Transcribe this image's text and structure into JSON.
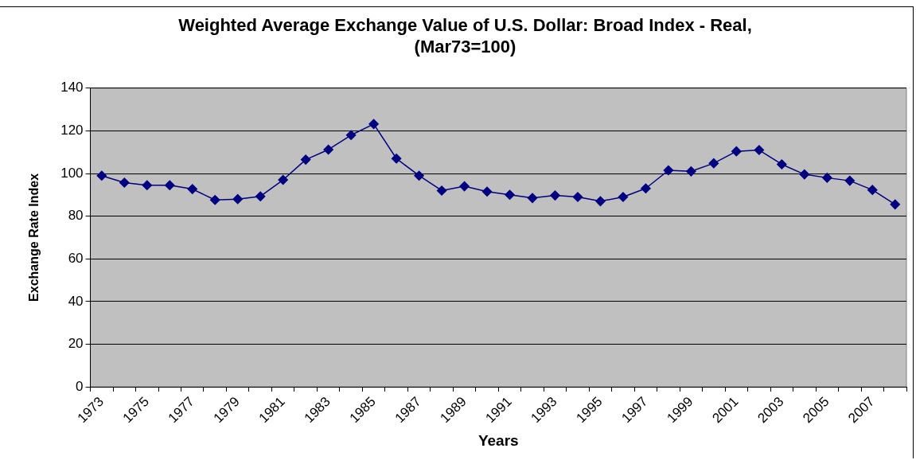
{
  "chart_data": {
    "type": "line",
    "title": "Weighted Average Exchange Value of U.S. Dollar: Broad Index - Real, (Mar73=100)",
    "xlabel": "Years",
    "ylabel": "Exchange Rate Index",
    "categories": [
      "1973",
      null,
      "1975",
      null,
      "1977",
      null,
      "1979",
      null,
      "1981",
      null,
      "1983",
      null,
      "1985",
      null,
      "1987",
      null,
      "1989",
      null,
      "1991",
      null,
      "1993",
      null,
      "1995",
      null,
      "1997",
      null,
      "1999",
      null,
      "2001",
      null,
      "2003",
      null,
      "2005",
      null,
      "2007",
      null
    ],
    "series": [
      {
        "color": "#000080",
        "values": [
          99,
          95.7,
          94.5,
          94.5,
          92.7,
          87.6,
          88,
          89.3,
          97,
          106.5,
          111.2,
          118,
          123.2,
          107,
          99,
          92,
          94,
          91.5,
          90,
          88.5,
          89.7,
          89,
          87,
          89,
          93,
          101.5,
          101,
          104.8,
          110.4,
          111,
          104.3,
          99.6,
          98,
          96.6,
          92.3,
          85.5
        ]
      }
    ],
    "ylim": [
      0,
      140
    ],
    "yticks": [
      0,
      20,
      40,
      60,
      80,
      100,
      120,
      140
    ],
    "grid": "y",
    "legend": false,
    "marker": "diamond",
    "line_style": "solid"
  }
}
